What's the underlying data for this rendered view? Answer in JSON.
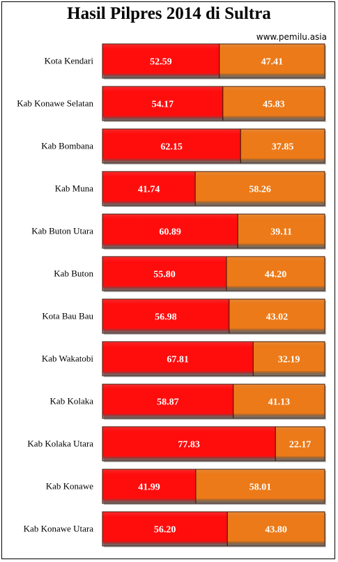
{
  "header": {
    "title": "Hasil Pilpres 2014 di Sultra",
    "source": "www.pemilu.asia"
  },
  "colors": {
    "series_a": "#ff0d0d",
    "series_b": "#ec7a18",
    "bar_edge": "#3a1a0a"
  },
  "chart_data": {
    "type": "bar",
    "orientation": "horizontal",
    "stacked": true,
    "title": "Hasil Pilpres 2014 di Sultra",
    "xlabel": "",
    "ylabel": "",
    "xlim": [
      0,
      100
    ],
    "grid": false,
    "legend": "none",
    "categories": [
      "Kota Kendari",
      "Kab Konawe  Selatan",
      "Kab Bombana",
      "Kab Muna",
      "Kab Buton  Utara",
      "Kab Buton",
      "Kota Bau Bau",
      "Kab Wakatobi",
      "Kab Kolaka",
      "Kab Kolaka Utara",
      "Kab Konawe",
      "Kab Konawe Utara"
    ],
    "series": [
      {
        "values": [
          52.59,
          54.17,
          62.15,
          41.74,
          60.89,
          55.8,
          56.98,
          67.81,
          58.87,
          77.83,
          41.99,
          56.2
        ],
        "labels": [
          "52.59",
          "54.17",
          "62.15",
          "41.74",
          "60.89",
          "55.80",
          "56.98",
          "67.81",
          "58.87",
          "77.83",
          "41.99",
          "56.20"
        ]
      },
      {
        "values": [
          47.41,
          45.83,
          37.85,
          58.26,
          39.11,
          44.2,
          43.02,
          32.19,
          41.13,
          22.17,
          58.01,
          43.8
        ],
        "labels": [
          "47.41",
          "45.83",
          "37.85",
          "58.26",
          "39.11",
          "44.20",
          "43.02",
          "32.19",
          "41.13",
          "22.17",
          "58.01",
          "43.80"
        ]
      }
    ]
  }
}
